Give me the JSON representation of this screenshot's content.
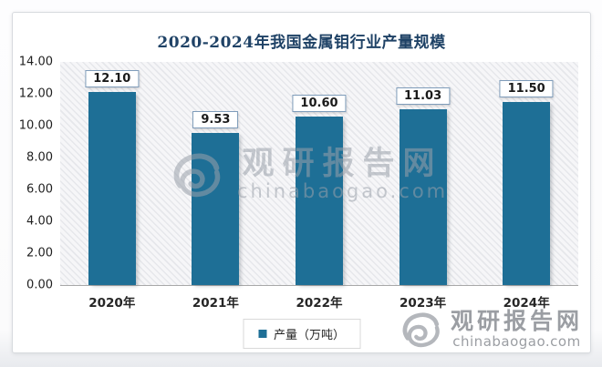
{
  "chart_data": {
    "type": "bar",
    "title": "2020-2024年我国金属钼行业产量规模",
    "categories": [
      "2020年",
      "2021年",
      "2022年",
      "2023年",
      "2024年"
    ],
    "values": [
      12.1,
      9.53,
      10.6,
      11.03,
      11.5
    ],
    "value_labels": [
      "12.10",
      "9.53",
      "10.60",
      "11.03",
      "11.50"
    ],
    "ylim": [
      0,
      14
    ],
    "ytick_step": 2,
    "ytick_labels": [
      "0.00",
      "2.00",
      "4.00",
      "6.00",
      "8.00",
      "10.00",
      "12.00",
      "14.00"
    ],
    "grid": false,
    "legend_position": "bottom",
    "legend": {
      "label": "产量（万吨）"
    },
    "bar_color": "#1e6f96"
  },
  "watermark_center": {
    "brand": "观研报告网",
    "domain": "chinabaogao.com"
  },
  "corner_logo": {
    "brand": "观研报告网",
    "domain": "chinabaogao.com"
  },
  "colors": {
    "bar": "#1e6f96",
    "title": "#1f4266",
    "axis_line": "#a8a8a8",
    "watermark": "#9ba1aa",
    "corner_logo": "#9b9ea3"
  }
}
